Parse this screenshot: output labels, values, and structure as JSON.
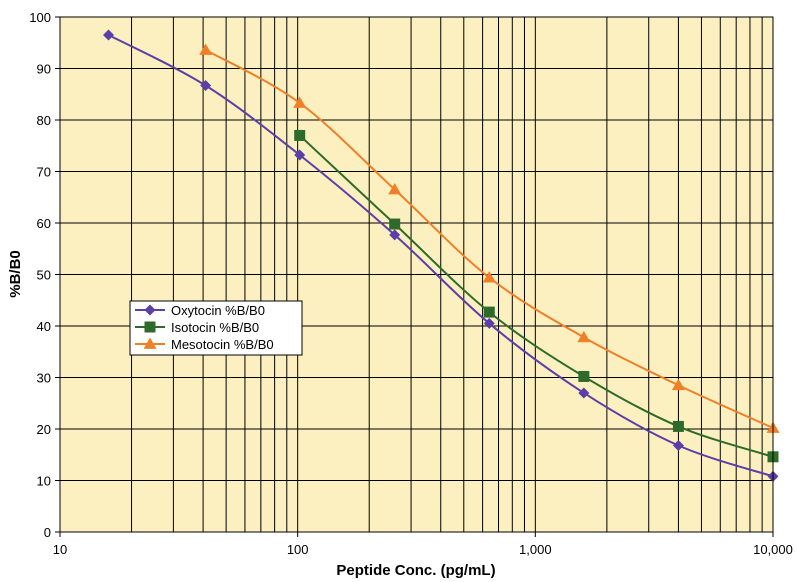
{
  "chart_data": {
    "type": "line",
    "xlabel": "Peptide Conc. (pg/mL)",
    "ylabel": "%B/B0",
    "x_scale": "log",
    "xlim": [
      10,
      10000
    ],
    "ylim": [
      0,
      100
    ],
    "x_ticks": [
      10,
      100,
      1000,
      10000
    ],
    "x_tick_labels": [
      "10",
      "100",
      "1,000",
      "10,000"
    ],
    "y_ticks": [
      0,
      10,
      20,
      30,
      40,
      50,
      60,
      70,
      80,
      90,
      100
    ],
    "y_tick_labels": [
      "0",
      "10",
      "20",
      "30",
      "40",
      "50",
      "60",
      "70",
      "80",
      "90",
      "100"
    ],
    "grid": true,
    "plot_background": "#FDF0C0",
    "legend_position": "left-middle",
    "series": [
      {
        "name": "Oxytocin %B/B0",
        "color": "#5B3FA6",
        "marker": "diamond",
        "x": [
          16,
          41,
          102,
          256,
          640,
          1600,
          4000,
          10000
        ],
        "y": [
          96.5,
          86.7,
          73.2,
          57.7,
          40.5,
          27.0,
          16.8,
          10.8
        ]
      },
      {
        "name": "Isotocin %B/B0",
        "color": "#2E6B2A",
        "marker": "square",
        "x": [
          102,
          256,
          640,
          1600,
          4000,
          10000
        ],
        "y": [
          77.0,
          59.8,
          42.7,
          30.2,
          20.5,
          14.6
        ]
      },
      {
        "name": "Mesotocin %B/B0",
        "color": "#F07F28",
        "marker": "triangle",
        "x": [
          41,
          102,
          256,
          640,
          1600,
          4000,
          10000
        ],
        "y": [
          93.6,
          83.3,
          66.5,
          49.4,
          37.8,
          28.5,
          20.2
        ]
      }
    ]
  }
}
